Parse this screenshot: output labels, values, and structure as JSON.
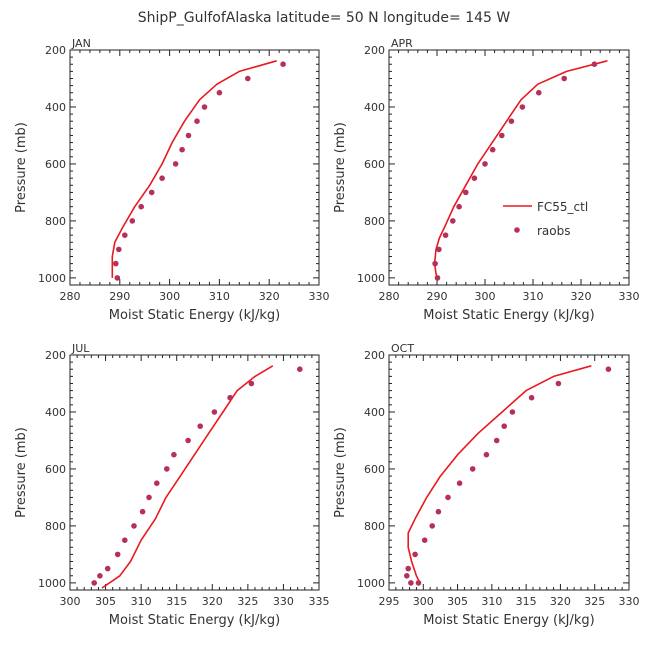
{
  "title": "ShipP_GulfofAlaska  latitude= 50 N longitude= 145 W",
  "colors": {
    "model": "#e8191f",
    "obs": "#b5305a",
    "axis": "#222222",
    "text": "#333333"
  },
  "chart_data": [
    {
      "type": "line",
      "panel": "JAN",
      "xlabel": "Moist Static Energy (kJ/kg)",
      "ylabel": "Pressure (mb)",
      "xlim": [
        280,
        330
      ],
      "ylim": [
        1025,
        200
      ],
      "xticks": [
        280,
        290,
        300,
        310,
        320,
        330
      ],
      "yticks": [
        200,
        400,
        600,
        800,
        1000
      ],
      "series": [
        {
          "kind": "line",
          "x": [
            321.5,
            314,
            309.5,
            306,
            303,
            300.5,
            298.5,
            296,
            293,
            290.5,
            289,
            288.5,
            288.5,
            288.5
          ],
          "y": [
            238,
            275,
            320,
            375,
            450,
            525,
            600,
            675,
            750,
            825,
            875,
            925,
            975,
            1000
          ]
        },
        {
          "kind": "points",
          "x": [
            322.8,
            315.7,
            310,
            307,
            305.5,
            303.8,
            302.5,
            301.2,
            298.5,
            296.4,
            294.3,
            292.5,
            291,
            289.8,
            289.2,
            289.5
          ],
          "y": [
            250,
            300,
            350,
            400,
            450,
            500,
            550,
            600,
            650,
            700,
            750,
            800,
            850,
            900,
            950,
            1000
          ]
        }
      ]
    },
    {
      "type": "line",
      "panel": "APR",
      "xlabel": "Moist Static Energy (kJ/kg)",
      "ylabel": "Pressure (mb)",
      "xlim": [
        280,
        330
      ],
      "ylim": [
        1025,
        200
      ],
      "xticks": [
        280,
        290,
        300,
        310,
        320,
        330
      ],
      "yticks": [
        200,
        400,
        600,
        800,
        1000
      ],
      "series": [
        {
          "name": "FC55_ctl",
          "kind": "line",
          "x": [
            325.5,
            317,
            311,
            307.5,
            304.5,
            301.5,
            298.5,
            296,
            293.5,
            291.5,
            290.5,
            289.8,
            289.5,
            289.8,
            290
          ],
          "y": [
            238,
            275,
            320,
            375,
            450,
            525,
            600,
            675,
            750,
            825,
            860,
            900,
            950,
            985,
            1000
          ]
        },
        {
          "name": "raobs",
          "kind": "points",
          "x": [
            322.8,
            316.5,
            311.2,
            307.8,
            305.5,
            303.5,
            301.6,
            300,
            297.8,
            296,
            294.6,
            293.3,
            291.8,
            290.4,
            289.6,
            290.1
          ],
          "y": [
            250,
            300,
            350,
            400,
            450,
            500,
            550,
            600,
            650,
            700,
            750,
            800,
            850,
            900,
            950,
            1000
          ]
        }
      ]
    },
    {
      "type": "line",
      "panel": "JUL",
      "xlabel": "Moist Static Energy (kJ/kg)",
      "ylabel": "Pressure (mb)",
      "xlim": [
        300,
        335
      ],
      "ylim": [
        1025,
        200
      ],
      "xticks": [
        300,
        305,
        310,
        315,
        320,
        325,
        330,
        335
      ],
      "yticks": [
        200,
        400,
        600,
        800,
        1000
      ],
      "series": [
        {
          "kind": "line",
          "x": [
            328.5,
            326,
            323.5,
            321.5,
            319.5,
            317.5,
            315.5,
            313.5,
            312,
            310,
            308.5,
            307,
            304.5
          ],
          "y": [
            238,
            275,
            325,
            400,
            475,
            550,
            625,
            700,
            775,
            850,
            925,
            975,
            1018
          ]
        },
        {
          "kind": "points",
          "x": [
            332.3,
            325.5,
            322.5,
            320.3,
            318.3,
            316.6,
            314.6,
            313.6,
            312.2,
            311.1,
            310.2,
            309,
            307.7,
            306.7,
            305.3,
            304.2,
            303.4
          ],
          "y": [
            250,
            300,
            350,
            400,
            450,
            500,
            550,
            600,
            650,
            700,
            750,
            800,
            850,
            900,
            950,
            975,
            1000
          ]
        }
      ]
    },
    {
      "type": "line",
      "panel": "OCT",
      "xlabel": "Moist Static Energy (kJ/kg)",
      "ylabel": "Pressure (mb)",
      "xlim": [
        295,
        330
      ],
      "ylim": [
        1025,
        200
      ],
      "xticks": [
        295,
        300,
        305,
        310,
        315,
        320,
        325,
        330
      ],
      "yticks": [
        200,
        400,
        600,
        800,
        1000
      ],
      "series": [
        {
          "kind": "line",
          "x": [
            324.5,
            319,
            315,
            311.5,
            308,
            305,
            302.5,
            300.5,
            298.8,
            297.8,
            297.8,
            298.3,
            299,
            299.5
          ],
          "y": [
            238,
            275,
            325,
            400,
            475,
            550,
            625,
            700,
            775,
            825,
            875,
            925,
            975,
            1000
          ]
        },
        {
          "kind": "points",
          "x": [
            327,
            319.7,
            315.8,
            313,
            311.8,
            310.7,
            309.2,
            307.2,
            305.3,
            303.6,
            302.2,
            301.3,
            300.2,
            298.8,
            297.8,
            297.6,
            298.2,
            299.3
          ],
          "y": [
            250,
            300,
            350,
            400,
            450,
            500,
            550,
            600,
            650,
            700,
            750,
            800,
            850,
            900,
            950,
            975,
            1000,
            1000
          ]
        }
      ]
    }
  ],
  "legend": {
    "model_label": "FC55_ctl",
    "obs_label": "raobs",
    "placement": "APR panel, right"
  }
}
